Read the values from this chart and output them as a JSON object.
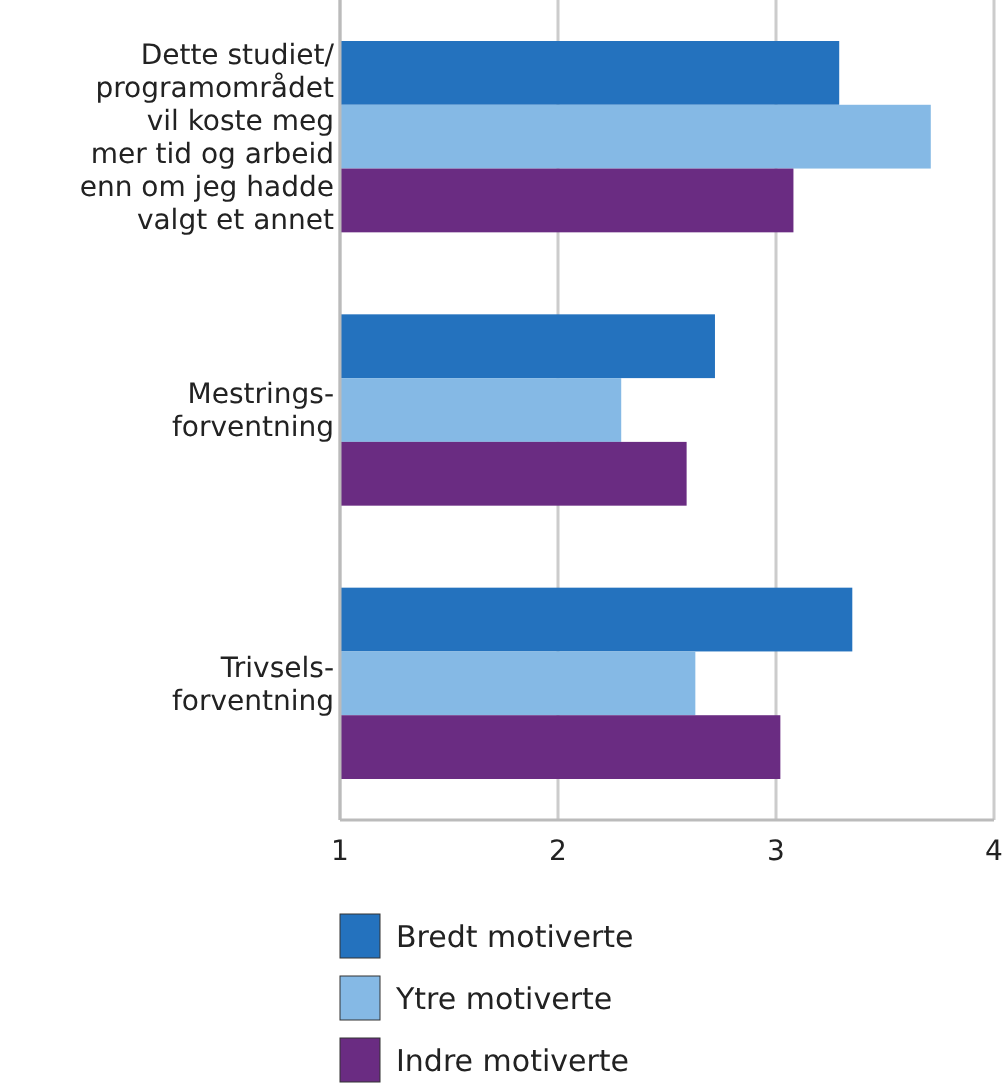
{
  "chart_data": {
    "type": "bar",
    "orientation": "horizontal",
    "categories": [
      "Dette studiet/\nprogramområdet\nvil koste meg\nmer tid og arbeid\nenn om jeg hadde\nvalgt et annet",
      "Mestrings-\nforventning",
      "Trivsels-\nforventning"
    ],
    "series": [
      {
        "name": "Bredt motiverte",
        "color": "#2472be",
        "values": [
          3.29,
          2.72,
          3.35
        ]
      },
      {
        "name": "Ytre motiverte",
        "color": "#85b9e5",
        "values": [
          3.71,
          2.29,
          2.63
        ]
      },
      {
        "name": "Indre motiverte",
        "color": "#6a2c82",
        "values": [
          3.08,
          2.59,
          3.02
        ]
      }
    ],
    "xlim": [
      1,
      4
    ],
    "xticks": [
      1,
      2,
      3,
      4
    ],
    "grid": "x",
    "legend": "bottom"
  }
}
